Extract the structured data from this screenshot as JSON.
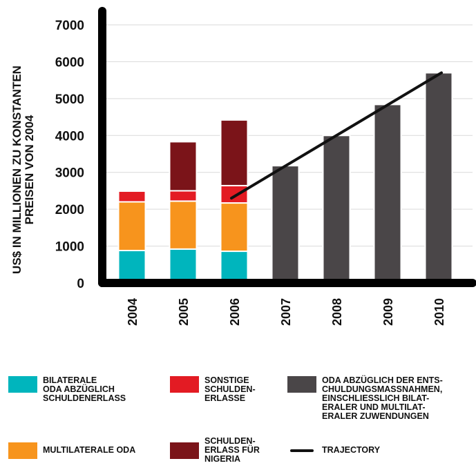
{
  "chart_data": {
    "type": "bar",
    "ylabel_lines": [
      "US$ IN MILLIONEN ZU KONSTANTEN",
      "PREISEN VON 2004"
    ],
    "categories": [
      "2004",
      "2005",
      "2006",
      "2007",
      "2008",
      "2009",
      "2010"
    ],
    "ylim": [
      0,
      7000
    ],
    "yticks": [
      "0",
      "1000",
      "2000",
      "3000",
      "4000",
      "5000",
      "6000",
      "7000"
    ],
    "stacked": true,
    "series": [
      {
        "name": "BILATERALE ODA ABZÜGLICH SCHULDENERLASS",
        "color": "#00b5bd",
        "values": [
          880,
          920,
          860,
          null,
          null,
          null,
          null
        ]
      },
      {
        "name": "MULTILATERALE ODA",
        "color": "#f7941d",
        "values": [
          1320,
          1300,
          1310,
          null,
          null,
          null,
          null
        ]
      },
      {
        "name": "SONSTIGE SCHULDEN-ERLASSE",
        "color": "#e31b23",
        "values": [
          290,
          280,
          470,
          null,
          null,
          null,
          null
        ]
      },
      {
        "name": "SCHULDEN-ERLASS FÜR NIGERIA",
        "color": "#7b1419",
        "values": [
          null,
          1330,
          1780,
          null,
          null,
          null,
          null
        ]
      },
      {
        "name": "ODA ABZÜGLICH DER ENTSCHULDUNGSMASSNAHMEN, EINSCHLIESSLICH BILATERALER UND MULTILATERALER ZUWENDUNGEN",
        "color": "#4a4648",
        "values": [
          null,
          null,
          null,
          3180,
          4000,
          4840,
          5700
        ]
      }
    ],
    "trajectory": {
      "name": "TRAJECTORY",
      "color": "#111111",
      "points": [
        {
          "x": "2006",
          "y": 2300
        },
        {
          "x": "2010",
          "y": 5700
        }
      ]
    },
    "grid": true
  },
  "legend": {
    "items": [
      {
        "key": "bilateral",
        "color": "#00b5bd",
        "text": "BILATERALE\nODA ABZÜGLICH\nSCHULDENERLASS"
      },
      {
        "key": "sonstige",
        "color": "#e31b23",
        "text": "SONSTIGE\nSCHULDEN-\nERLASSE"
      },
      {
        "key": "oda_net",
        "color": "#4a4648",
        "text": "ODA ABZÜGLICH DER ENTS-\nCHULDUNGSMASSNAHMEN,\nEINSCHLIESSLICH BILAT-\nERALER UND MULTILAT-\nERALER ZUWENDUNGEN"
      },
      {
        "key": "multilateral",
        "color": "#f7941d",
        "text": "MULTILATERALE ODA"
      },
      {
        "key": "nigeria",
        "color": "#7b1419",
        "text": "SCHULDEN-\nERLASS FÜR\nNIGERIA"
      },
      {
        "key": "trajectory",
        "color": "#111111",
        "text": "TRAJECTORY"
      }
    ]
  }
}
